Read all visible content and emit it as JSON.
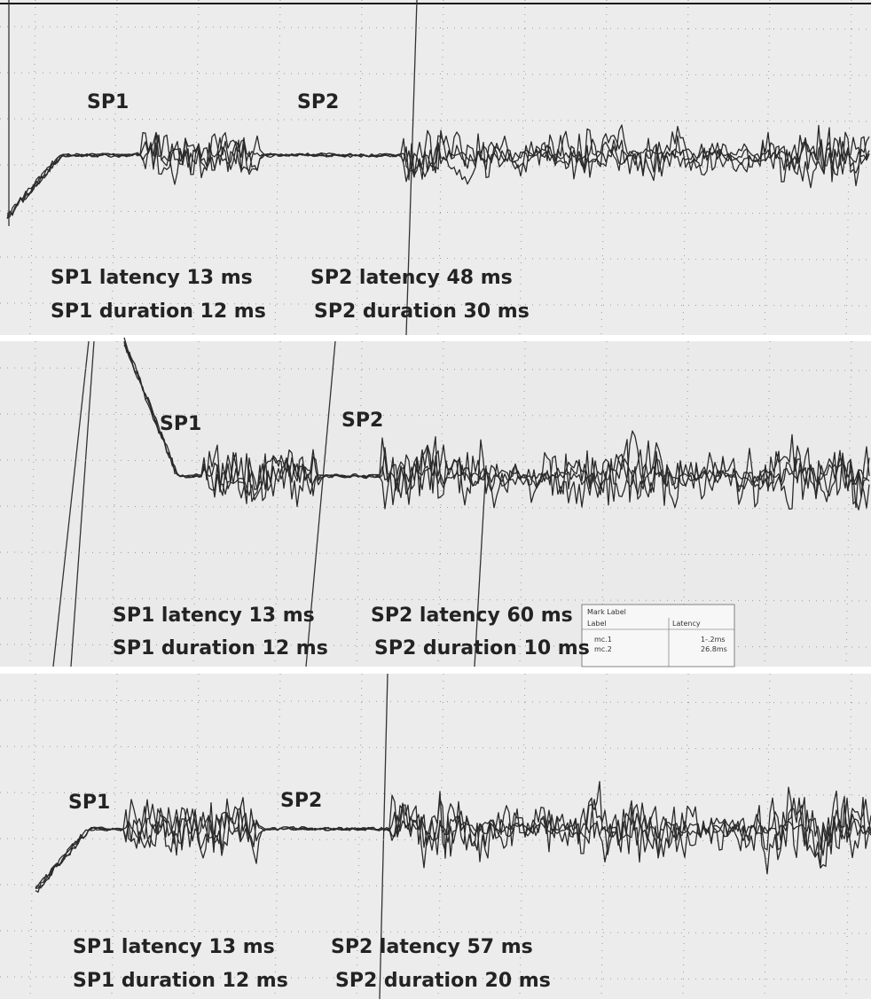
{
  "panels": [
    {
      "markers": [
        "SP1",
        "SP2"
      ],
      "latency": [
        "SP1 latency 13 ms",
        "SP2 latency 48 ms"
      ],
      "duration": [
        "SP1 duration 12 ms",
        "SP2 duration 30 ms"
      ]
    },
    {
      "markers": [
        "SP1",
        "SP2"
      ],
      "latency": [
        "SP1 latency 13 ms",
        "SP2 latency 60 ms"
      ],
      "duration": [
        "SP1 duration 12 ms",
        "SP2 duration 10 ms"
      ]
    },
    {
      "markers": [
        "SP1",
        "SP2"
      ],
      "latency": [
        "SP1 latency 13 ms",
        "SP2 latency 57 ms"
      ],
      "duration": [
        "SP1 duration 12 ms",
        "SP2 duration 20 ms"
      ]
    }
  ],
  "mark_label_box": {
    "title": "Mark Label",
    "columns": [
      "Label",
      "Latency"
    ],
    "rows": [
      [
        "mc.1",
        "1-.2ms"
      ],
      [
        "mc.2",
        "26.8ms"
      ]
    ]
  }
}
